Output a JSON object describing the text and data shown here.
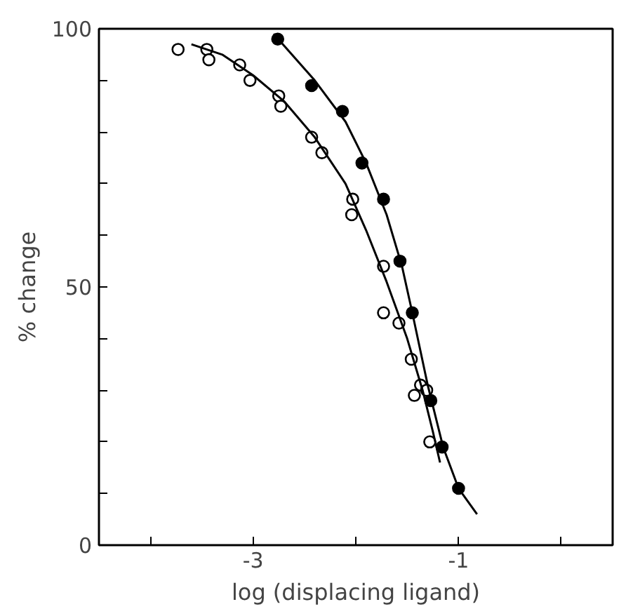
{
  "chart_data": {
    "type": "scatter",
    "xlabel": "log (displacing ligand)",
    "ylabel": "% change",
    "xlim": [
      -4.5,
      0.5
    ],
    "xticks": [
      {
        "value": -4,
        "label": null
      },
      -3,
      {
        "value": -2,
        "label": null
      },
      -1,
      {
        "value": 0,
        "label": null
      }
    ],
    "ylim": [
      0,
      100
    ],
    "yticks": [
      0,
      {
        "value": 10,
        "label": null
      },
      {
        "value": 20,
        "label": null
      },
      {
        "value": 30,
        "label": null
      },
      {
        "value": 40,
        "label": null
      },
      50,
      {
        "value": 60,
        "label": null
      },
      {
        "value": 70,
        "label": null
      },
      {
        "value": 80,
        "label": null
      },
      {
        "value": 90,
        "label": null
      },
      100
    ],
    "grid": false,
    "series": [
      {
        "marker": "circle",
        "color": "#000000",
        "x": [
          -2.76,
          -2.43,
          -2.13,
          -1.94,
          -1.73,
          -1.57,
          -1.45,
          -1.27,
          -1.16,
          -1.0
        ],
        "values": [
          98,
          89,
          84,
          74,
          67,
          55,
          45,
          28,
          19,
          11
        ]
      },
      {
        "marker": "circle",
        "color": "#ffffff",
        "x": [
          -3.73,
          -3.45,
          -3.43,
          -3.13,
          -3.03,
          -2.75,
          -2.73,
          -2.43,
          -2.33,
          -2.03,
          -2.04,
          -1.73,
          -1.73,
          -1.58,
          -1.46,
          -1.37,
          -1.31,
          -1.43,
          -1.28
        ],
        "values": [
          96,
          96,
          94,
          93,
          90,
          87,
          85,
          79,
          76,
          67,
          64,
          54,
          45,
          43,
          36,
          31,
          30,
          29,
          20
        ]
      },
      {
        "type": "line",
        "color": "#000000",
        "x": [
          -2.8,
          -2.4,
          -2.1,
          -1.9,
          -1.7,
          -1.55,
          -1.45,
          -1.3,
          -1.15,
          -1.0,
          -0.82
        ],
        "values": [
          99,
          90,
          82,
          74,
          64,
          54,
          45,
          31,
          19,
          11,
          6
        ]
      },
      {
        "type": "line",
        "color": "#000000",
        "x": [
          -3.6,
          -3.3,
          -3.0,
          -2.7,
          -2.4,
          -2.1,
          -1.9,
          -1.7,
          -1.5,
          -1.35,
          -1.25,
          -1.18
        ],
        "values": [
          97,
          95,
          91,
          86,
          79,
          70,
          61,
          51,
          40,
          30,
          22,
          16
        ]
      }
    ]
  }
}
